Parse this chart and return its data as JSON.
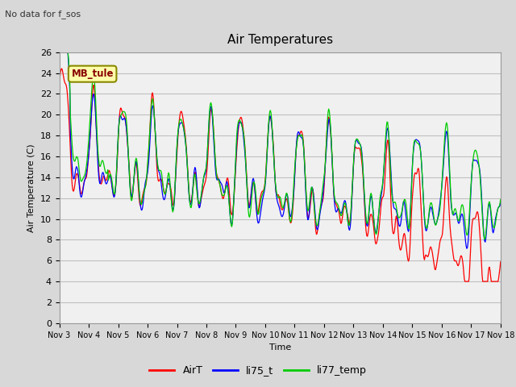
{
  "title": "Air Temperatures",
  "subtitle": "No data for f_sos",
  "xlabel": "Time",
  "ylabel": "Air Temperature (C)",
  "ylim": [
    0,
    26
  ],
  "yticks": [
    0,
    2,
    4,
    6,
    8,
    10,
    12,
    14,
    16,
    18,
    20,
    22,
    24,
    26
  ],
  "xtick_labels": [
    "Nov 3",
    "Nov 4",
    "Nov 5",
    "Nov 6",
    "Nov 7",
    "Nov 8",
    "Nov 9",
    "Nov 10",
    "Nov 11",
    "Nov 12",
    "Nov 13",
    "Nov 14",
    "Nov 15",
    "Nov 16",
    "Nov 17",
    "Nov 18"
  ],
  "legend_label": "MB_tule",
  "series_labels": [
    "AirT",
    "li75_t",
    "li77_temp"
  ],
  "series_colors": [
    "#ff0000",
    "#0000ff",
    "#00cc00"
  ],
  "background_color": "#d8d8d8",
  "plot_bg_color": "#f0f0f0",
  "grid_color": "#c0c0c0",
  "title_fontsize": 11,
  "label_fontsize": 8,
  "tick_fontsize": 8
}
